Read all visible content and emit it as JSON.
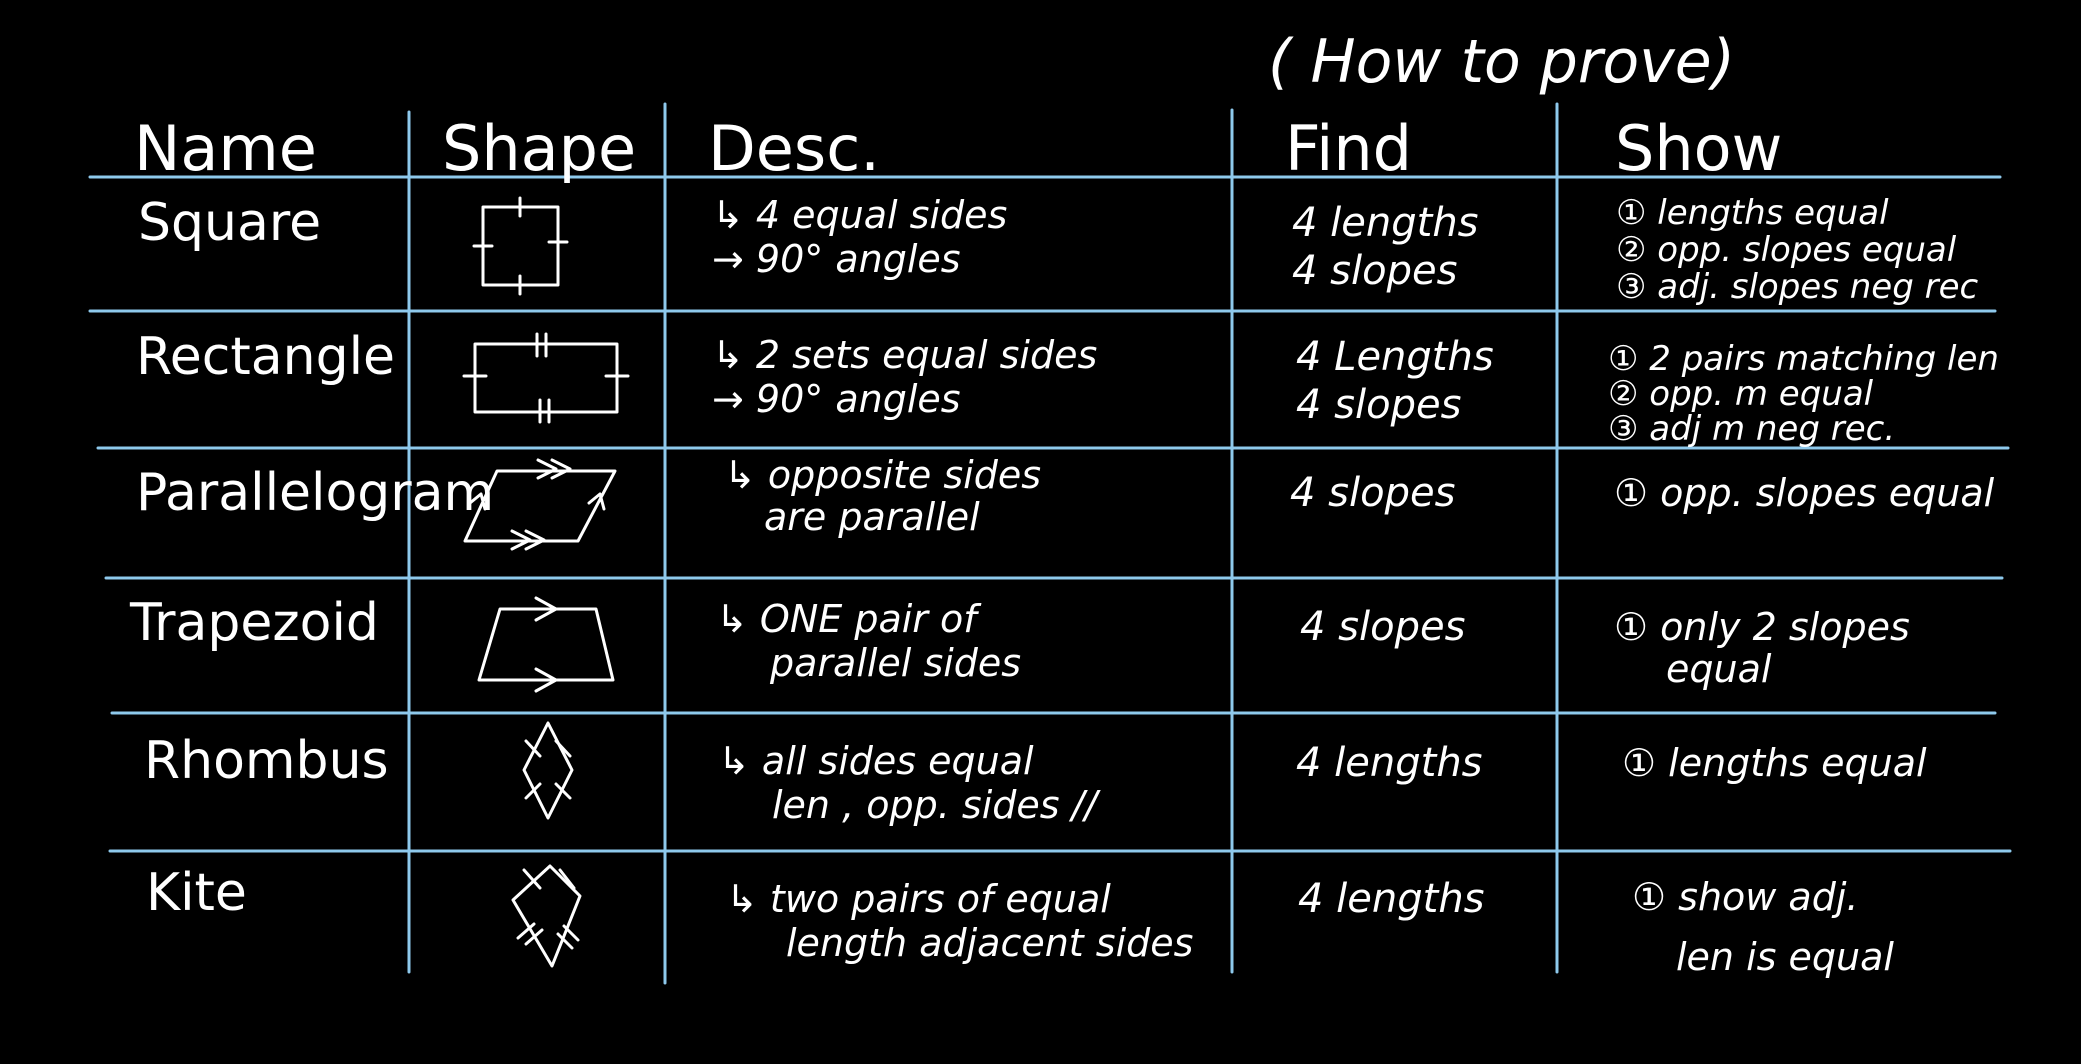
{
  "board": {
    "caption": "( How to prove)",
    "headers": {
      "name": "Name",
      "shape": "Shape",
      "desc": "Desc.",
      "find": "Find",
      "show": "Show"
    },
    "rows": [
      {
        "name": "Square",
        "shape_icon": "square-icon",
        "desc": [
          "↳ 4 equal sides",
          "→ 90° angles"
        ],
        "find": [
          "4 lengths",
          "4 slopes"
        ],
        "show": [
          "① lengths equal",
          "② opp. slopes equal",
          "③ adj. slopes neg rec"
        ]
      },
      {
        "name": "Rectangle",
        "shape_icon": "rectangle-icon",
        "desc": [
          "↳ 2 sets equal sides",
          "→ 90° angles"
        ],
        "find": [
          "4 Lengths",
          "4 slopes"
        ],
        "show": [
          "① 2 pairs matching len",
          "② opp. m equal",
          "③ adj m neg rec."
        ]
      },
      {
        "name": "Parallelogram",
        "shape_icon": "parallelogram-icon",
        "desc": [
          "↳ opposite sides",
          "are parallel"
        ],
        "find": [
          "4 slopes"
        ],
        "show": [
          "① opp. slopes equal"
        ]
      },
      {
        "name": "Trapezoid",
        "shape_icon": "trapezoid-icon",
        "desc": [
          "↳ ONE pair of",
          "parallel sides"
        ],
        "find": [
          "4 slopes"
        ],
        "show": [
          "① only 2 slopes",
          "equal"
        ]
      },
      {
        "name": "Rhombus",
        "shape_icon": "rhombus-icon",
        "desc": [
          "↳ all sides equal",
          "len , opp. sides //"
        ],
        "find": [
          "4 lengths"
        ],
        "show": [
          "① lengths equal"
        ]
      },
      {
        "name": "Kite",
        "shape_icon": "kite-icon",
        "desc": [
          "↳ two pairs of equal",
          "length adjacent sides"
        ],
        "find": [
          "4 lengths"
        ],
        "show": [
          "① show adj.",
          "len is equal"
        ]
      }
    ],
    "colors": {
      "background": "#000000",
      "ink": "#ffffff",
      "grid": "#8ec9ec"
    }
  }
}
